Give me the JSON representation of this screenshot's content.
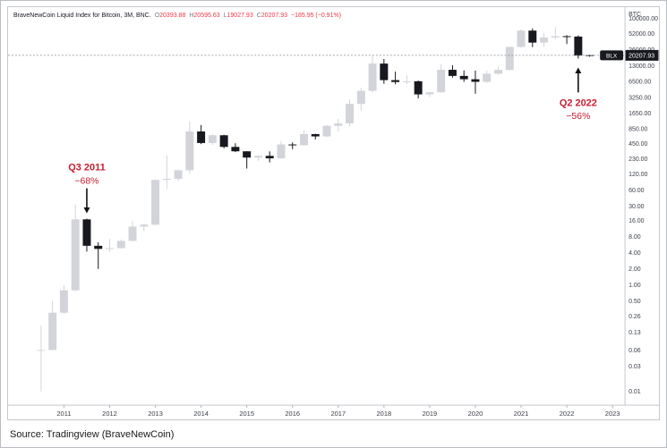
{
  "header": {
    "title": "BraveNewCoin Liquid Index for Bitcoin, 3M, BNC.",
    "o_label": "O",
    "o": "20393.88",
    "h_label": "H",
    "h": "20595.63",
    "l_label": "L",
    "l": "19027.93",
    "c_label": "C",
    "c": "20207.93",
    "change": "−185.95 (−0.91%)"
  },
  "footer": {
    "source": "Source: Tradingview (BraveNewCoin)"
  },
  "chart_data": {
    "type": "candlestick",
    "scale": "log",
    "symbol": "BLX",
    "series_label": "BLX",
    "last_price": 20207.93,
    "last_price_label": "20207.93",
    "y_axis": {
      "unit_label": "BTC",
      "ticks": [
        "100000.00",
        "52000.00",
        "26000.00",
        "13000.00",
        "6500.00",
        "3250.00",
        "1650.00",
        "850.00",
        "450.00",
        "230.00",
        "120.00",
        "60.00",
        "30.00",
        "16.00",
        "8.00",
        "4.00",
        "2.00",
        "1.00",
        "0.50",
        "0.26",
        "0.13",
        "0.06",
        "0.03",
        "0.01"
      ]
    },
    "x_axis": {
      "year_labels": [
        "2011",
        "2012",
        "2013",
        "2014",
        "2015",
        "2016",
        "2017",
        "2018",
        "2019",
        "2020",
        "2021",
        "2022",
        "2023"
      ]
    },
    "candles": [
      [
        "2010-Q3",
        0.06,
        0.17,
        0.01,
        0.06
      ],
      [
        "2010-Q4",
        0.06,
        0.5,
        0.06,
        0.3
      ],
      [
        "2011-Q1",
        0.3,
        0.97,
        0.28,
        0.79
      ],
      [
        "2011-Q2",
        0.79,
        31.9,
        0.76,
        16.9
      ],
      [
        "2011-Q3",
        16.9,
        17.5,
        4.2,
        5.4
      ],
      [
        "2011-Q4",
        5.4,
        6.3,
        1.99,
        4.72
      ],
      [
        "2012-Q1",
        4.72,
        7.22,
        4.17,
        4.88
      ],
      [
        "2012-Q2",
        4.88,
        7.08,
        4.82,
        6.68
      ],
      [
        "2012-Q3",
        6.68,
        15.4,
        6.55,
        12.38
      ],
      [
        "2012-Q4",
        12.38,
        14.1,
        10.2,
        13.45
      ],
      [
        "2013-Q1",
        13.45,
        94.0,
        13.16,
        93.03
      ],
      [
        "2013-Q2",
        93.03,
        266.0,
        63.0,
        97.5
      ],
      [
        "2013-Q3",
        97.5,
        146.0,
        88.0,
        141.0
      ],
      [
        "2013-Q4",
        141.0,
        1163.0,
        122.0,
        754.0
      ],
      [
        "2014-Q1",
        754.0,
        995.0,
        437.0,
        458.0
      ],
      [
        "2014-Q2",
        458.0,
        683.0,
        421.0,
        640.0
      ],
      [
        "2014-Q3",
        640.0,
        652.0,
        365.0,
        387.0
      ],
      [
        "2014-Q4",
        387.0,
        453.0,
        309.0,
        320.0
      ],
      [
        "2015-Q1",
        320.0,
        321.0,
        152.0,
        244.0
      ],
      [
        "2015-Q2",
        244.0,
        268.0,
        213.0,
        263.0
      ],
      [
        "2015-Q3",
        263.0,
        319.0,
        198.0,
        236.0
      ],
      [
        "2015-Q4",
        236.0,
        502.0,
        233.0,
        430.0
      ],
      [
        "2016-Q1",
        430.0,
        470.0,
        350.0,
        416.0
      ],
      [
        "2016-Q2",
        416.0,
        781.0,
        410.0,
        673.0
      ],
      [
        "2016-Q3",
        673.0,
        685.0,
        533.0,
        609.0
      ],
      [
        "2016-Q4",
        609.0,
        998.0,
        595.0,
        963.0
      ],
      [
        "2017-Q1",
        963.0,
        1290.0,
        752.0,
        1071.0
      ],
      [
        "2017-Q2",
        1071.0,
        2999.0,
        938.0,
        2480.0
      ],
      [
        "2017-Q3",
        2480.0,
        4980.0,
        1830.0,
        4360.0
      ],
      [
        "2017-Q4",
        4360.0,
        19891.0,
        4110.0,
        14156.0
      ],
      [
        "2018-Q1",
        14156.0,
        17234.0,
        5920.0,
        6928.0
      ],
      [
        "2018-Q2",
        6928.0,
        10020.0,
        5780.0,
        6385.0
      ],
      [
        "2018-Q3",
        6385.0,
        8507.0,
        5855.0,
        6601.0
      ],
      [
        "2018-Q4",
        6601.0,
        6795.0,
        3148.0,
        3742.0
      ],
      [
        "2019-Q1",
        3742.0,
        4140.0,
        3350.0,
        4103.0
      ],
      [
        "2019-Q2",
        4103.0,
        13880.0,
        3990.0,
        10818.0
      ],
      [
        "2019-Q3",
        10818.0,
        13200.0,
        7714.0,
        8310.0
      ],
      [
        "2019-Q4",
        8310.0,
        10540.0,
        6425.0,
        7193.0
      ],
      [
        "2020-Q1",
        7193.0,
        10500.0,
        3850.0,
        6438.0
      ],
      [
        "2020-Q2",
        6438.0,
        10380.0,
        6150.0,
        9137.0
      ],
      [
        "2020-Q3",
        9137.0,
        12480.0,
        8900.0,
        10776.0
      ],
      [
        "2020-Q4",
        10776.0,
        29322.0,
        10500.0,
        28990.0
      ],
      [
        "2021-Q1",
        28990.0,
        61844.0,
        28130.0,
        58789.0
      ],
      [
        "2021-Q2",
        58789.0,
        64895.0,
        28800.0,
        35041.0
      ],
      [
        "2021-Q3",
        35041.0,
        52956.0,
        29278.0,
        43791.0
      ],
      [
        "2021-Q4",
        43791.0,
        69000.0,
        40650.0,
        46217.0
      ],
      [
        "2022-Q1",
        46217.0,
        48240.0,
        32933.0,
        45539.0
      ],
      [
        "2022-Q2",
        45539.0,
        47700.0,
        17567.0,
        19985.0
      ],
      [
        "2022-Q3",
        20393.88,
        20595.63,
        19027.93,
        20207.93
      ]
    ],
    "annotations": [
      {
        "title": "Q3 2011",
        "value": "−68%",
        "candle_index": 4,
        "direction": "down"
      },
      {
        "title": "Q2 2022",
        "value": "−56%",
        "candle_index": 47,
        "direction": "up"
      }
    ],
    "colors": {
      "up_candle": "#d2d4da",
      "down_candle": "#17191e",
      "annotation_red": "#c51d30",
      "arrow_black": "#111111",
      "last_price_line": "#8b8e98",
      "badge_bg": "#17191e",
      "axis_text": "#3a3e47",
      "frame": "#c6c8cd"
    }
  }
}
